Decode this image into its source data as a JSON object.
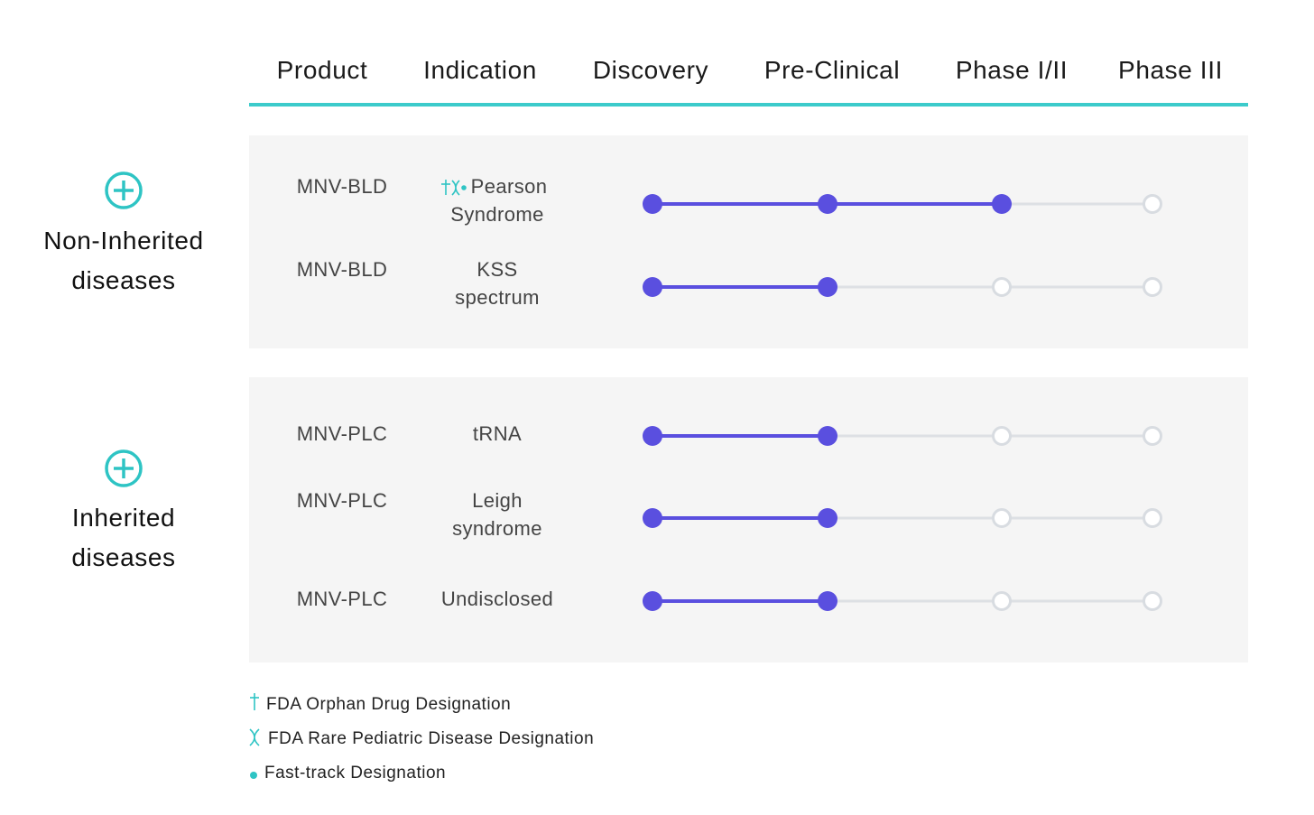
{
  "header": {
    "columns": [
      "Product",
      "Indication",
      "Discovery",
      "Pre-Clinical",
      "Phase I/II",
      "Phase III"
    ]
  },
  "groups": [
    {
      "label": [
        "Non-Inherited",
        "diseases"
      ],
      "rows": [
        {
          "product": "MNV-BLD",
          "indication": [
            "Pearson",
            "Syndrome"
          ],
          "stage": 3
        },
        {
          "product": "MNV-BLD",
          "indication": [
            "KSS",
            "spectrum"
          ],
          "stage": 2
        }
      ]
    },
    {
      "label": [
        "Inherited",
        "diseases"
      ],
      "rows": [
        {
          "product": "MNV-PLC",
          "indication": [
            "tRNA"
          ],
          "stage": 2
        },
        {
          "product": "MNV-PLC",
          "indication": [
            "Leigh",
            "syndrome"
          ],
          "stage": 2
        },
        {
          "product": "MNV-PLC",
          "indication": [
            "Undisclosed"
          ],
          "stage": 2
        }
      ]
    }
  ],
  "legend": [
    "FDA Orphan Drug Designation",
    "FDA Rare Pediatric Disease Designation",
    "Fast-track Designation"
  ]
}
